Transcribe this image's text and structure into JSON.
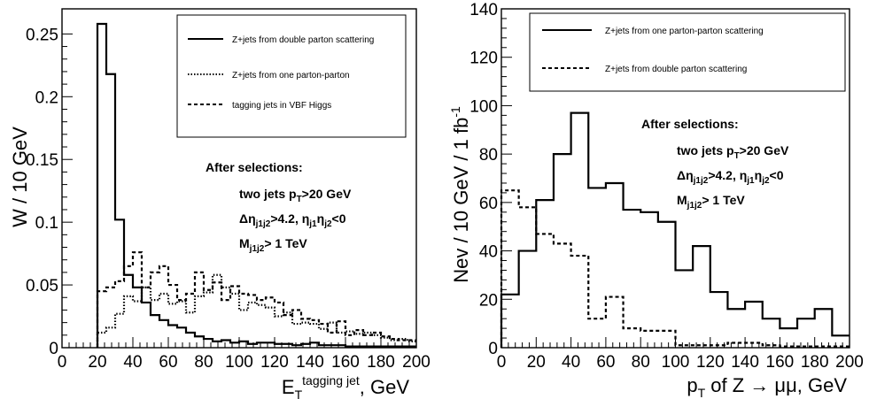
{
  "chart_data": [
    {
      "type": "histogram",
      "ylabel": "W / 10 GeV",
      "xlabel": {
        "main": "E",
        "sub": "T",
        "sup": "tagging jet",
        "suffix": ", GeV"
      },
      "xlim": [
        0,
        200
      ],
      "ylim": [
        0,
        0.27
      ],
      "xticks": [
        0,
        20,
        40,
        60,
        80,
        100,
        120,
        140,
        160,
        180,
        200
      ],
      "yticks": [
        {
          "v": 0,
          "label": "0"
        },
        {
          "v": 0.05,
          "label": "0.05"
        },
        {
          "v": 0.1,
          "label": "0.1"
        },
        {
          "v": 0.15,
          "label": "0.15"
        },
        {
          "v": 0.2,
          "label": "0.2"
        },
        {
          "v": 0.25,
          "label": "0.25"
        }
      ],
      "bin_width": 5,
      "x_start": 20,
      "series": [
        {
          "name": "Z+jets from double parton scattering",
          "style": "solid",
          "values": [
            0.258,
            0.218,
            0.102,
            0.058,
            0.048,
            0.036,
            0.026,
            0.022,
            0.018,
            0.016,
            0.012,
            0.009,
            0.007,
            0.005,
            0.006,
            0.004,
            0.005,
            0.003,
            0.004,
            0.004,
            0.003,
            0.003,
            0.002,
            0.003,
            0.004,
            0.002,
            0.002,
            0.002,
            0.001,
            0.001,
            0.001,
            0.001,
            0.001,
            0.001,
            0.001,
            0.001
          ]
        },
        {
          "name": "Z+jets from one parton-parton",
          "style": "dotted",
          "values": [
            0.012,
            0.016,
            0.027,
            0.041,
            0.037,
            0.048,
            0.038,
            0.043,
            0.035,
            0.037,
            0.028,
            0.041,
            0.044,
            0.058,
            0.048,
            0.043,
            0.03,
            0.036,
            0.034,
            0.032,
            0.025,
            0.028,
            0.019,
            0.02,
            0.019,
            0.015,
            0.02,
            0.012,
            0.013,
            0.011,
            0.012,
            0.01,
            0.008,
            0.006,
            0.007,
            0.005
          ]
        },
        {
          "name": "tagging jets in VBF Higgs",
          "style": "dashed",
          "values": [
            0.045,
            0.048,
            0.053,
            0.065,
            0.076,
            0.048,
            0.06,
            0.065,
            0.05,
            0.038,
            0.043,
            0.06,
            0.046,
            0.052,
            0.038,
            0.049,
            0.043,
            0.042,
            0.038,
            0.04,
            0.036,
            0.026,
            0.03,
            0.023,
            0.022,
            0.019,
            0.012,
            0.021,
            0.01,
            0.014,
            0.01,
            0.012,
            0.009,
            0.007,
            0.006,
            0.006
          ]
        }
      ],
      "legend": "top-right",
      "annotation": {
        "title": "After selections:",
        "line1": {
          "pre": "two jets p",
          "sub": "T",
          "post": ">20 GeV"
        },
        "line2": {
          "a": "Δη",
          "sub1": "j1j2",
          "b": ">4.2, η",
          "sub2": "j1",
          "c": "η",
          "sub3": "j2",
          "d": "<0"
        },
        "line3": {
          "pre": "M",
          "sub": "j1j2",
          "post": "> 1 TeV"
        }
      }
    },
    {
      "type": "histogram",
      "ylabel": {
        "main": "Nev / 10 GeV / 1 fb",
        "sup": "-1"
      },
      "xlabel": "p_T of Z → μμ, GeV",
      "xlabel_parts": {
        "a": "p",
        "sub": "T",
        "b": " of Z ",
        "arrow": "→",
        "c": " μμ, GeV"
      },
      "xlim": [
        0,
        200
      ],
      "ylim": [
        0,
        140
      ],
      "xticks": [
        0,
        20,
        40,
        60,
        80,
        100,
        120,
        140,
        160,
        180,
        200
      ],
      "yticks": [
        {
          "v": 0,
          "label": "0"
        },
        {
          "v": 20,
          "label": "20"
        },
        {
          "v": 40,
          "label": "40"
        },
        {
          "v": 60,
          "label": "60"
        },
        {
          "v": 80,
          "label": "80"
        },
        {
          "v": 100,
          "label": "100"
        },
        {
          "v": 120,
          "label": "120"
        },
        {
          "v": 140,
          "label": "140"
        }
      ],
      "bin_width": 10,
      "x_start": 0,
      "series": [
        {
          "name": "Z+jets from one parton-parton scattering",
          "style": "solid",
          "values": [
            22,
            40,
            61,
            80,
            97,
            66,
            68,
            57,
            56,
            52,
            32,
            42,
            23,
            16,
            19,
            12,
            8,
            12,
            16,
            5
          ]
        },
        {
          "name": "Z+jets from double parton scattering",
          "style": "dashed",
          "values": [
            65,
            58,
            47,
            43,
            38,
            12,
            21,
            8,
            7,
            7,
            1,
            1,
            1,
            2,
            2,
            1,
            0.5,
            0.5,
            0.5,
            0.5
          ]
        }
      ],
      "legend": "top-right",
      "annotation": {
        "title": "After selections:",
        "line1": {
          "pre": "two jets p",
          "sub": "T",
          "post": ">20 GeV"
        },
        "line2": {
          "a": "Δη",
          "sub1": "j1j2",
          "b": ">4.2, η",
          "sub2": "j1",
          "c": "η",
          "sub3": "j2",
          "d": "<0"
        },
        "line3": {
          "pre": "M",
          "sub": "j1j2",
          "post": "> 1 TeV"
        }
      }
    }
  ]
}
